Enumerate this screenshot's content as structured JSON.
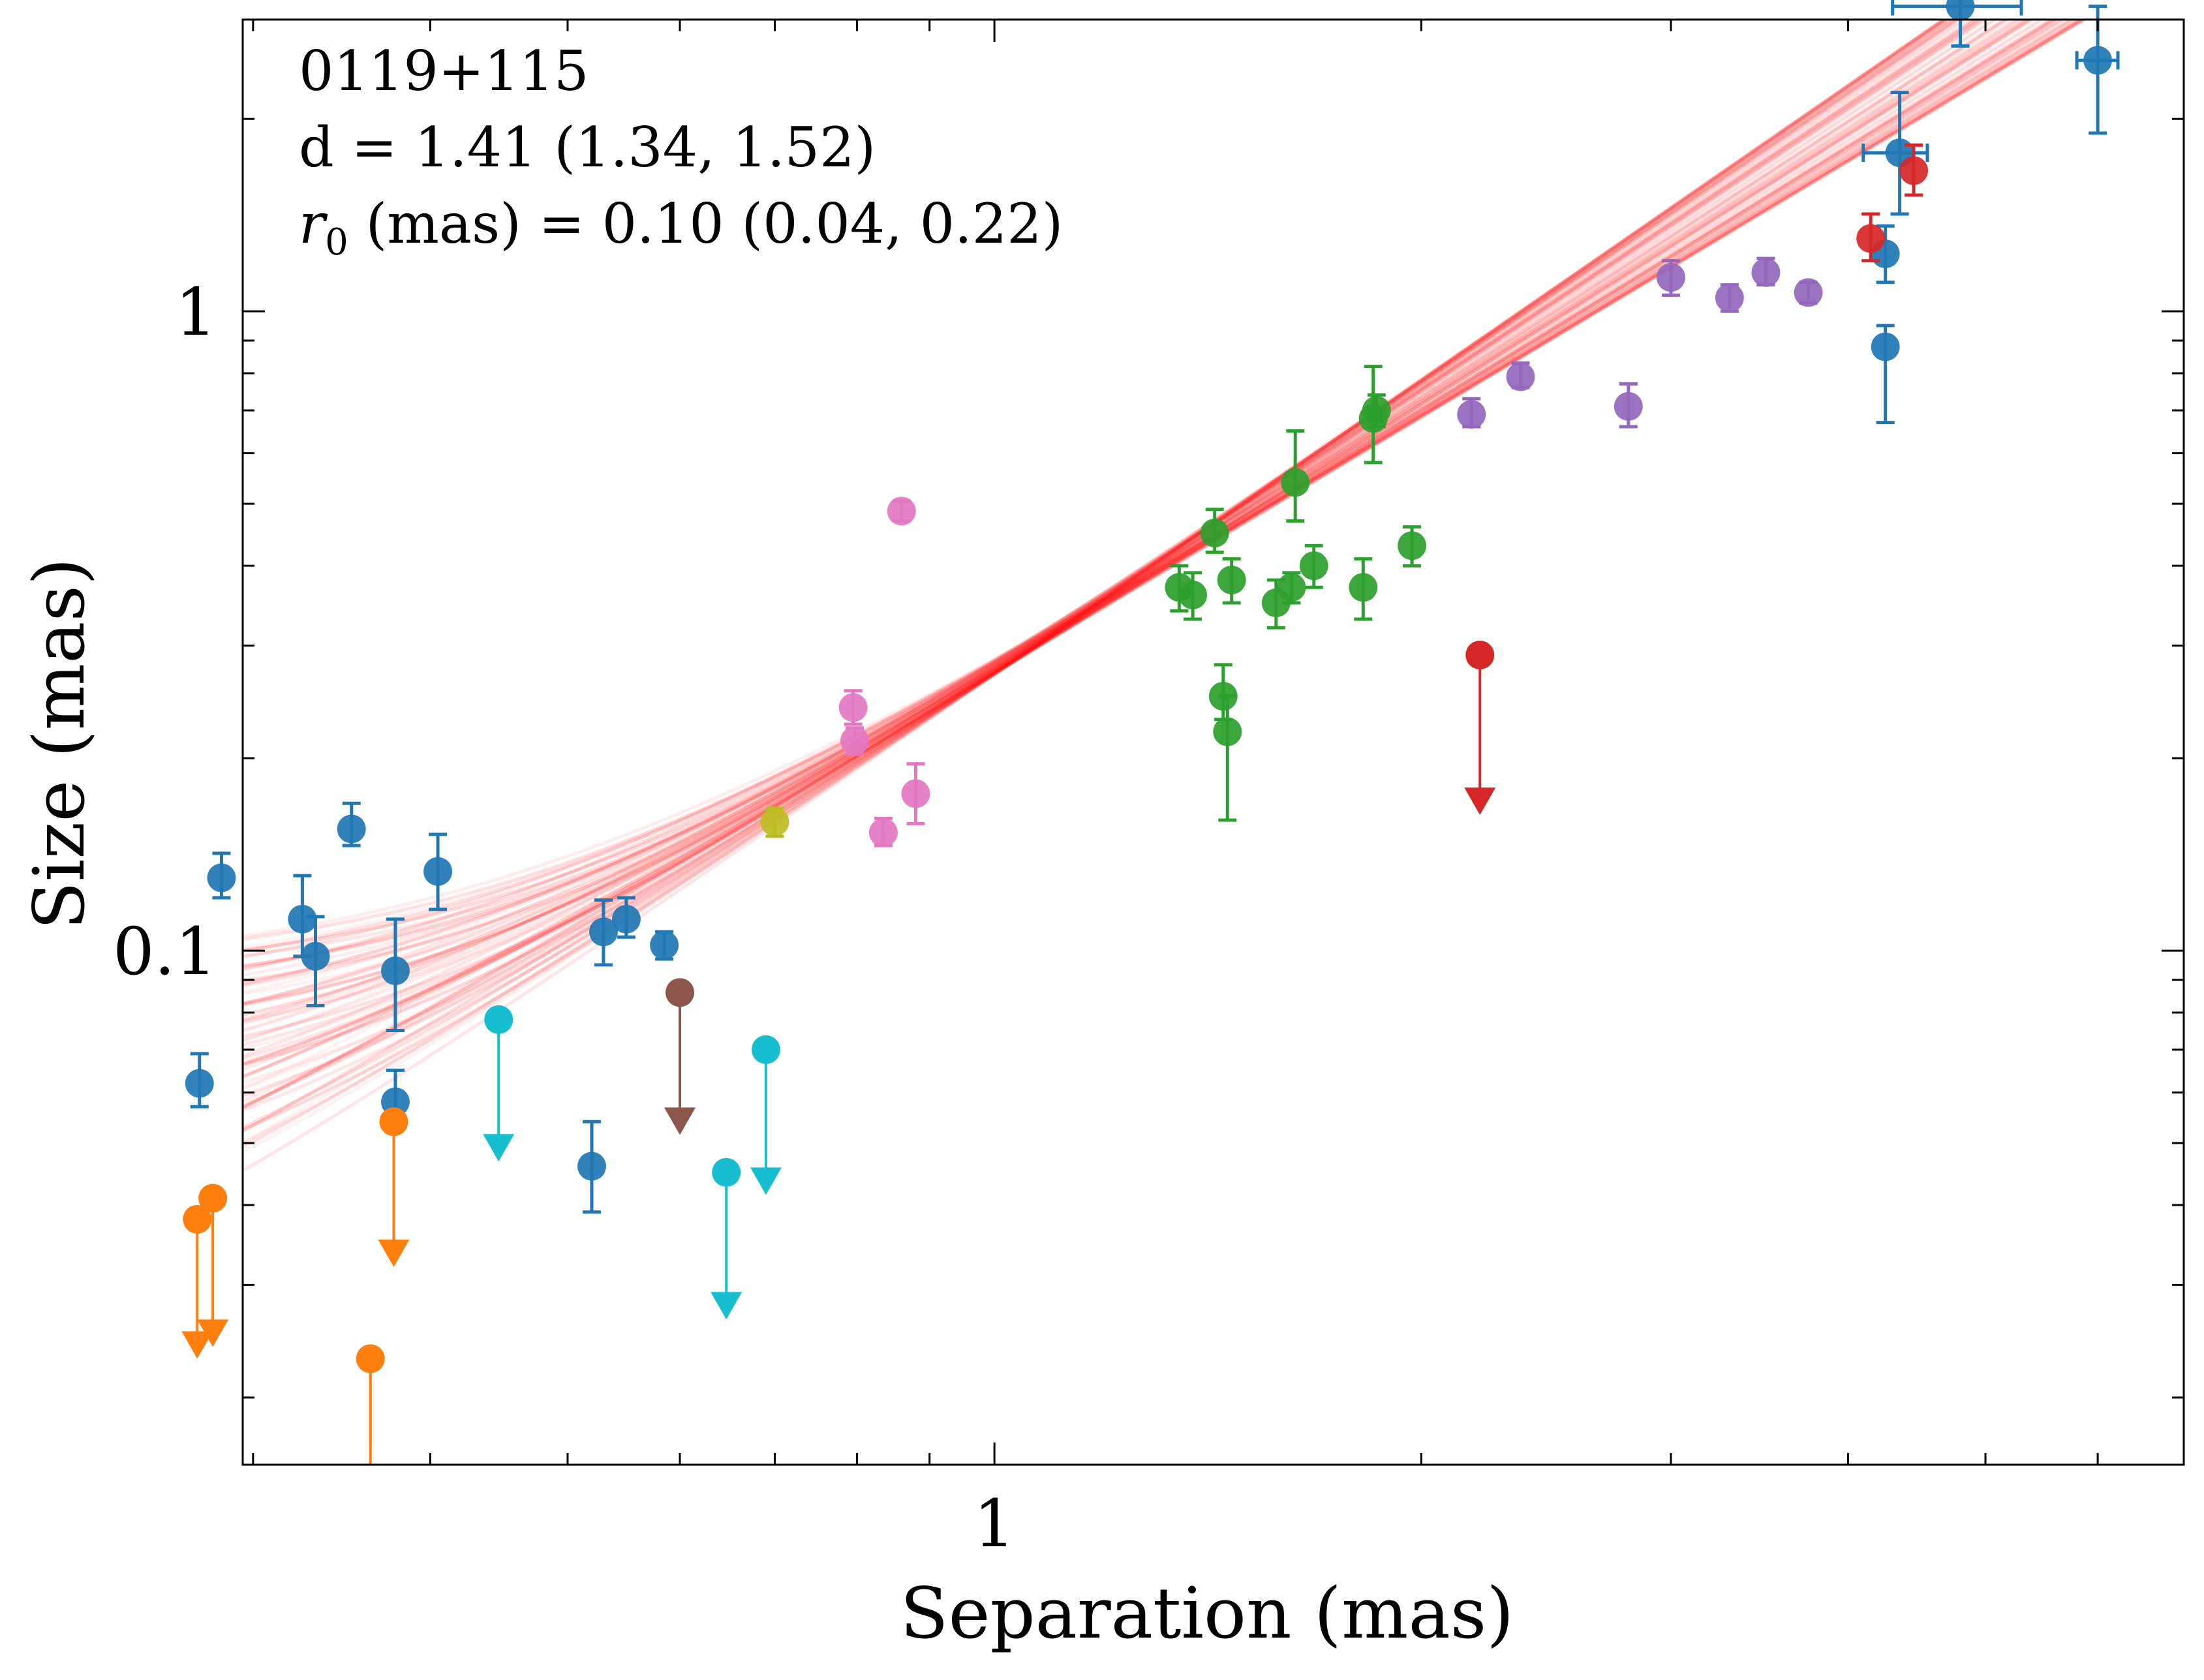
{
  "chart_data": {
    "type": "scatter",
    "title": "",
    "xlabel": "Separation (mas)",
    "ylabel": "Size (mas)",
    "xscale": "log",
    "yscale": "log",
    "xlim": [
      0.295,
      6.9
    ],
    "ylim": [
      0.0157,
      2.86
    ],
    "x_ticklabels": [
      {
        "value": 1,
        "label": "1"
      }
    ],
    "y_ticklabels": [
      {
        "value": 0.1,
        "label": "0.1"
      },
      {
        "value": 1,
        "label": "1"
      }
    ],
    "annotation": {
      "line1": "0119+115",
      "line2": "d = 1.41 (1.34, 1.52)",
      "line3_prefix": "r",
      "line3_sub": "0",
      "line3_rest": " (mas) = 0.10 (0.04, 0.22)"
    },
    "fit": {
      "description": "posterior samples of size = sqrt(r0^2 + (a*sep)^2) style model",
      "color": "#ff0000",
      "x_range": [
        0.275,
        6.0
      ],
      "slope_median": 1.41,
      "slope_range": [
        1.34,
        1.52
      ],
      "r0_median": 0.1,
      "r0_range": [
        0.04,
        0.22
      ],
      "n_samples": 60
    },
    "series": [
      {
        "name": "epoch-blue",
        "color": "#1f77b4",
        "points": [
          {
            "x": 0.275,
            "y": 0.062,
            "ylo": 0.057,
            "yhi": 0.069
          },
          {
            "x": 0.285,
            "y": 0.13,
            "ylo": 0.121,
            "yhi": 0.142
          },
          {
            "x": 0.325,
            "y": 0.112,
            "ylo": 0.098,
            "yhi": 0.131
          },
          {
            "x": 0.332,
            "y": 0.098,
            "ylo": 0.082,
            "yhi": 0.113
          },
          {
            "x": 0.352,
            "y": 0.155,
            "ylo": 0.146,
            "yhi": 0.17
          },
          {
            "x": 0.378,
            "y": 0.093,
            "ylo": 0.075,
            "yhi": 0.112
          },
          {
            "x": 0.378,
            "y": 0.058,
            "ylo": 0.054,
            "yhi": 0.065
          },
          {
            "x": 0.405,
            "y": 0.133,
            "ylo": 0.116,
            "yhi": 0.152
          },
          {
            "x": 0.52,
            "y": 0.046,
            "ylo": 0.039,
            "yhi": 0.054
          },
          {
            "x": 0.53,
            "y": 0.107,
            "ylo": 0.095,
            "yhi": 0.12
          },
          {
            "x": 0.55,
            "y": 0.112,
            "ylo": 0.105,
            "yhi": 0.121
          },
          {
            "x": 0.585,
            "y": 0.102,
            "ylo": 0.097,
            "yhi": 0.107
          },
          {
            "x": 4.25,
            "y": 0.88,
            "ylo": 0.67,
            "yhi": 0.95
          },
          {
            "x": 4.25,
            "y": 1.23,
            "ylo": 1.11,
            "yhi": 1.36
          },
          {
            "x": 4.35,
            "y": 1.77,
            "ylo": 1.42,
            "yhi": 2.2,
            "xlo": 4.1,
            "xhi": 4.55
          },
          {
            "x": 4.8,
            "y": 3.0,
            "ylo": 2.6,
            "yhi": 3.9,
            "xlo": 4.3,
            "xhi": 5.3
          },
          {
            "x": 6.0,
            "y": 2.47,
            "ylo": 1.9,
            "yhi": 3.0,
            "xlo": 5.8,
            "xhi": 6.2
          }
        ]
      },
      {
        "name": "epoch-orange",
        "color": "#ff7f0e",
        "upper_limits": [
          {
            "x": 0.274,
            "y": 0.038,
            "y_arrow": 0.023
          },
          {
            "x": 0.281,
            "y": 0.041,
            "y_arrow": 0.024
          },
          {
            "x": 0.363,
            "y": 0.023,
            "y_arrow": 0.0157
          },
          {
            "x": 0.377,
            "y": 0.054,
            "y_arrow": 0.032
          }
        ]
      },
      {
        "name": "epoch-green",
        "color": "#2ca02c",
        "points": [
          {
            "x": 1.35,
            "y": 0.37,
            "ylo": 0.34,
            "yhi": 0.4
          },
          {
            "x": 1.38,
            "y": 0.36,
            "ylo": 0.33,
            "yhi": 0.39
          },
          {
            "x": 1.43,
            "y": 0.45,
            "ylo": 0.42,
            "yhi": 0.49
          },
          {
            "x": 1.45,
            "y": 0.25,
            "ylo": 0.23,
            "yhi": 0.28
          },
          {
            "x": 1.46,
            "y": 0.22,
            "ylo": 0.16,
            "yhi": 0.25
          },
          {
            "x": 1.47,
            "y": 0.38,
            "ylo": 0.35,
            "yhi": 0.41
          },
          {
            "x": 1.58,
            "y": 0.35,
            "ylo": 0.32,
            "yhi": 0.38
          },
          {
            "x": 1.62,
            "y": 0.37,
            "ylo": 0.35,
            "yhi": 0.39
          },
          {
            "x": 1.63,
            "y": 0.54,
            "ylo": 0.47,
            "yhi": 0.65
          },
          {
            "x": 1.68,
            "y": 0.4,
            "ylo": 0.37,
            "yhi": 0.43
          },
          {
            "x": 1.82,
            "y": 0.37,
            "ylo": 0.33,
            "yhi": 0.41
          },
          {
            "x": 1.85,
            "y": 0.68,
            "ylo": 0.58,
            "yhi": 0.82
          },
          {
            "x": 1.86,
            "y": 0.7,
            "ylo": 0.66,
            "yhi": 0.74
          },
          {
            "x": 1.97,
            "y": 0.43,
            "ylo": 0.4,
            "yhi": 0.46
          }
        ]
      },
      {
        "name": "epoch-red",
        "color": "#d62728",
        "points": [
          {
            "x": 4.15,
            "y": 1.3,
            "ylo": 1.2,
            "yhi": 1.42
          },
          {
            "x": 4.45,
            "y": 1.66,
            "ylo": 1.52,
            "yhi": 1.82
          }
        ],
        "upper_limits": [
          {
            "x": 2.2,
            "y": 0.29,
            "y_arrow": 0.163
          }
        ]
      },
      {
        "name": "epoch-purple",
        "color": "#9467bd",
        "points": [
          {
            "x": 2.17,
            "y": 0.69,
            "ylo": 0.66,
            "yhi": 0.73
          },
          {
            "x": 2.35,
            "y": 0.79,
            "ylo": 0.76,
            "yhi": 0.83
          },
          {
            "x": 2.8,
            "y": 0.71,
            "ylo": 0.66,
            "yhi": 0.77
          },
          {
            "x": 3.0,
            "y": 1.13,
            "ylo": 1.06,
            "yhi": 1.2
          },
          {
            "x": 3.3,
            "y": 1.05,
            "ylo": 1.0,
            "yhi": 1.1
          },
          {
            "x": 3.5,
            "y": 1.15,
            "ylo": 1.1,
            "yhi": 1.21
          },
          {
            "x": 3.75,
            "y": 1.07,
            "ylo": 1.03,
            "yhi": 1.11
          }
        ]
      },
      {
        "name": "epoch-brown",
        "color": "#8c564b",
        "upper_limits": [
          {
            "x": 0.6,
            "y": 0.086,
            "y_arrow": 0.0515
          }
        ]
      },
      {
        "name": "epoch-pink",
        "color": "#e377c2",
        "points": [
          {
            "x": 0.795,
            "y": 0.24,
            "ylo": 0.226,
            "yhi": 0.255
          },
          {
            "x": 0.797,
            "y": 0.213,
            "ylo": 0.203,
            "yhi": 0.223
          },
          {
            "x": 0.835,
            "y": 0.153,
            "ylo": 0.146,
            "yhi": 0.161
          },
          {
            "x": 0.86,
            "y": 0.487,
            "ylo": 0.47,
            "yhi": 0.505
          },
          {
            "x": 0.88,
            "y": 0.176,
            "ylo": 0.158,
            "yhi": 0.196
          }
        ]
      },
      {
        "name": "epoch-olive",
        "color": "#bcbd22",
        "points": [
          {
            "x": 0.7,
            "y": 0.159,
            "ylo": 0.151,
            "yhi": 0.167
          }
        ]
      },
      {
        "name": "epoch-cyan",
        "color": "#17becf",
        "upper_limits": [
          {
            "x": 0.447,
            "y": 0.078,
            "y_arrow": 0.0468
          },
          {
            "x": 0.647,
            "y": 0.045,
            "y_arrow": 0.0265
          },
          {
            "x": 0.69,
            "y": 0.07,
            "y_arrow": 0.0415
          }
        ]
      }
    ]
  }
}
